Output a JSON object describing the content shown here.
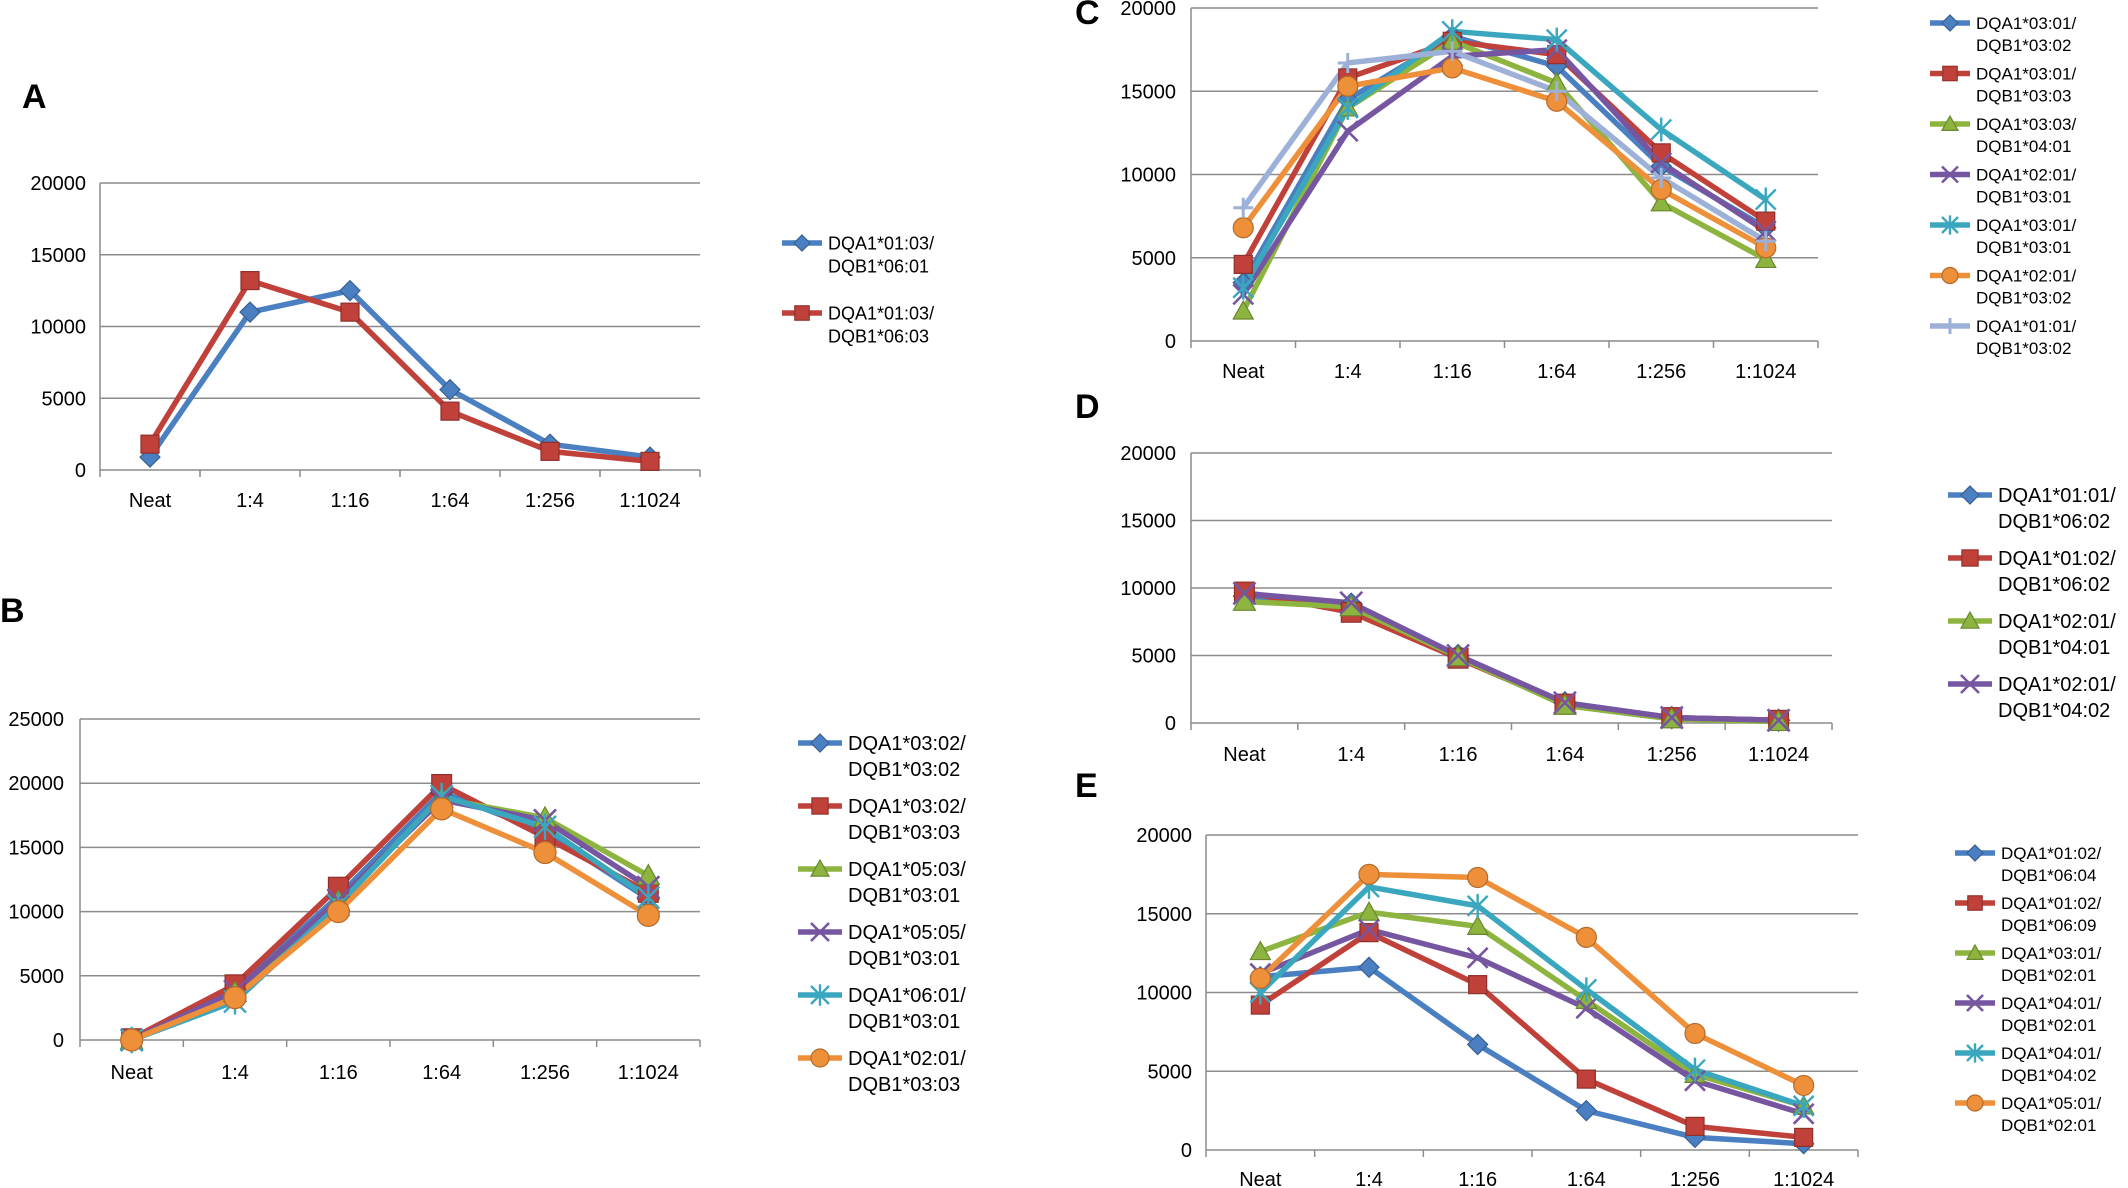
{
  "chart_data": [
    {
      "panel": "A",
      "type": "line",
      "categories": [
        "Neat",
        "1:4",
        "1:16",
        "1:64",
        "1:256",
        "1:1024"
      ],
      "ylim": [
        0,
        20000
      ],
      "yticks": [
        0,
        5000,
        10000,
        15000,
        20000
      ],
      "grid": true,
      "legend_position": "right",
      "series": [
        {
          "name": "DQA1*01:03/ DQB1*06:01",
          "color": "#4a7fc1",
          "marker": "diamond",
          "values": [
            900,
            11000,
            12500,
            5600,
            1800,
            900
          ]
        },
        {
          "name": "DQA1*01:03/ DQB1*06:03",
          "color": "#c0403a",
          "marker": "square",
          "values": [
            1800,
            13200,
            11000,
            4100,
            1300,
            600
          ]
        }
      ]
    },
    {
      "panel": "B",
      "type": "line",
      "categories": [
        "Neat",
        "1:4",
        "1:16",
        "1:64",
        "1:256",
        "1:1024"
      ],
      "ylim": [
        0,
        25000
      ],
      "yticks": [
        0,
        5000,
        10000,
        15000,
        20000,
        25000
      ],
      "grid": true,
      "legend_position": "right",
      "series": [
        {
          "name": "DQA1*03:02/ DQB1*03:02",
          "color": "#4a7fc1",
          "marker": "diamond",
          "values": [
            0,
            3900,
            11200,
            19300,
            16200,
            11000
          ]
        },
        {
          "name": "DQA1*03:02/ DQB1*03:03",
          "color": "#c0403a",
          "marker": "square",
          "values": [
            100,
            4300,
            11900,
            19900,
            15800,
            11500
          ]
        },
        {
          "name": "DQA1*05:03/ DQB1*03:01",
          "color": "#8db43e",
          "marker": "triangle",
          "values": [
            0,
            3700,
            10800,
            18800,
            17300,
            12800
          ]
        },
        {
          "name": "DQA1*05:05/ DQB1*03:01",
          "color": "#7756a1",
          "marker": "x",
          "values": [
            0,
            3800,
            10900,
            18700,
            17100,
            11900
          ]
        },
        {
          "name": "DQA1*06:01/ DQB1*03:01",
          "color": "#3aa7bf",
          "marker": "star",
          "values": [
            0,
            3000,
            10500,
            19000,
            16600,
            11100
          ]
        },
        {
          "name": "DQA1*02:01/ DQB1*03:03",
          "color": "#ee8f3a",
          "marker": "circle",
          "values": [
            0,
            3300,
            10000,
            18000,
            14600,
            9700
          ]
        }
      ]
    },
    {
      "panel": "C",
      "type": "line",
      "categories": [
        "Neat",
        "1:4",
        "1:16",
        "1:64",
        "1:256",
        "1:1024"
      ],
      "ylim": [
        0,
        20000
      ],
      "yticks": [
        0,
        5000,
        10000,
        15000,
        20000
      ],
      "grid": true,
      "legend_position": "right",
      "series": [
        {
          "name": "DQA1*03:01/ DQB1*03:02",
          "color": "#4a7fc1",
          "marker": "diamond",
          "values": [
            3500,
            14500,
            18300,
            16500,
            10500,
            6800
          ]
        },
        {
          "name": "DQA1*03:01/ DQB1*03:03",
          "color": "#c0403a",
          "marker": "square",
          "values": [
            4600,
            15800,
            18000,
            17200,
            11300,
            7200
          ]
        },
        {
          "name": "DQA1*03:03/ DQB1*04:01",
          "color": "#8db43e",
          "marker": "triangle",
          "values": [
            1800,
            14000,
            18000,
            15500,
            8300,
            4900
          ]
        },
        {
          "name": "DQA1*02:01/ DQB1*03:01",
          "color": "#7756a1",
          "marker": "x",
          "values": [
            2800,
            12600,
            17100,
            17500,
            10700,
            6600
          ]
        },
        {
          "name": "DQA1*03:01/ DQB1*03:01",
          "color": "#3aa7bf",
          "marker": "star",
          "values": [
            3200,
            14000,
            18600,
            18100,
            12700,
            8500
          ]
        },
        {
          "name": "DQA1*02:01/ DQB1*03:02",
          "color": "#ee8f3a",
          "marker": "circle",
          "values": [
            6800,
            15300,
            16400,
            14400,
            9100,
            5600
          ]
        },
        {
          "name": "DQA1*01:01/ DQB1*03:02",
          "color": "#9db1d8",
          "marker": "plus",
          "values": [
            8000,
            16700,
            17400,
            15000,
            9800,
            6000
          ]
        }
      ]
    },
    {
      "panel": "D",
      "type": "line",
      "categories": [
        "Neat",
        "1:4",
        "1:16",
        "1:64",
        "1:256",
        "1:1024"
      ],
      "ylim": [
        0,
        20000
      ],
      "yticks": [
        0,
        5000,
        10000,
        15000,
        20000
      ],
      "grid": true,
      "legend_position": "right",
      "series": [
        {
          "name": "DQA1*01:01/ DQB1*06:02",
          "color": "#4a7fc1",
          "marker": "diamond",
          "values": [
            9400,
            8800,
            5000,
            1500,
            400,
            200
          ]
        },
        {
          "name": "DQA1*01:02/ DQB1*06:02",
          "color": "#c0403a",
          "marker": "square",
          "values": [
            9700,
            8200,
            4800,
            1400,
            400,
            200
          ]
        },
        {
          "name": "DQA1*02:01/ DQB1*04:01",
          "color": "#8db43e",
          "marker": "triangle",
          "values": [
            9000,
            8600,
            4900,
            1300,
            300,
            100
          ]
        },
        {
          "name": "DQA1*02:01/ DQB1*04:02",
          "color": "#7756a1",
          "marker": "x",
          "values": [
            9600,
            8900,
            5000,
            1500,
            400,
            200
          ]
        }
      ]
    },
    {
      "panel": "E",
      "type": "line",
      "categories": [
        "Neat",
        "1:4",
        "1:16",
        "1:64",
        "1:256",
        "1:1024"
      ],
      "ylim": [
        0,
        20000
      ],
      "yticks": [
        0,
        5000,
        10000,
        15000,
        20000
      ],
      "grid": true,
      "legend_position": "right",
      "series": [
        {
          "name": "DQA1*01:02/ DQB1*06:04",
          "color": "#4a7fc1",
          "marker": "diamond",
          "values": [
            11000,
            11600,
            6700,
            2500,
            800,
            400
          ]
        },
        {
          "name": "DQA1*01:02/ DQB1*06:09",
          "color": "#c0403a",
          "marker": "square",
          "values": [
            9200,
            13800,
            10500,
            4500,
            1500,
            800
          ]
        },
        {
          "name": "DQA1*03:01/ DQB1*02:01",
          "color": "#8db43e",
          "marker": "triangle",
          "values": [
            12600,
            15100,
            14200,
            9500,
            4800,
            2800
          ]
        },
        {
          "name": "DQA1*04:01/ DQB1*02:01",
          "color": "#7756a1",
          "marker": "x",
          "values": [
            11200,
            14000,
            12200,
            9000,
            4400,
            2300
          ]
        },
        {
          "name": "DQA1*04:01/ DQB1*04:02",
          "color": "#3aa7bf",
          "marker": "star",
          "values": [
            10000,
            16700,
            15500,
            10200,
            5100,
            2800
          ]
        },
        {
          "name": "DQA1*05:01/ DQB1*02:01",
          "color": "#ee8f3a",
          "marker": "circle",
          "values": [
            10900,
            17500,
            17300,
            13500,
            7400,
            4100
          ]
        }
      ]
    }
  ]
}
